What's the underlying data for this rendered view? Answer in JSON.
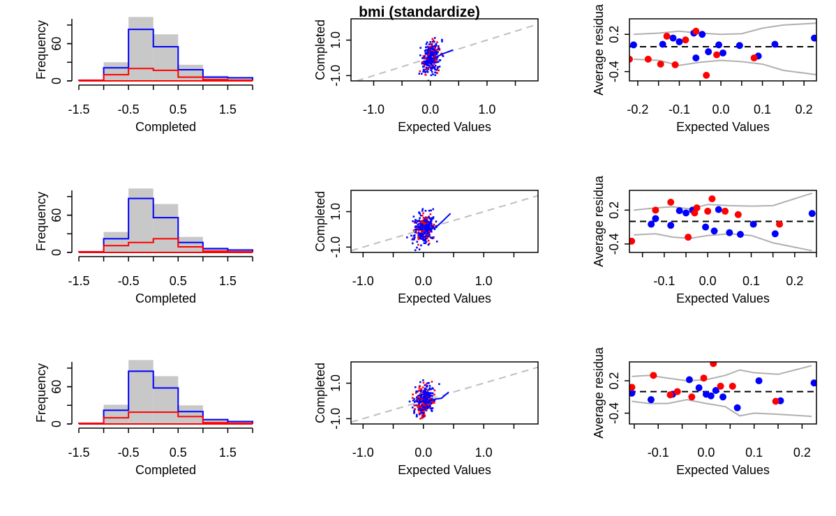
{
  "title": "bmi (standardize)",
  "colors": {
    "observed": "#0000ff",
    "imputed": "#ff0000",
    "total": "#c8c8c8",
    "ref": "#bebebe",
    "band": "#b0b0b0"
  },
  "chart_data": [
    {
      "type": "histogram",
      "row": 1,
      "xlabel": "Completed",
      "ylabel": "Frequency",
      "xlim": [
        -1.5,
        2.0
      ],
      "ylim": [
        0,
        100
      ],
      "xticks": [
        "-1.5",
        "-0.5",
        "0.5",
        "1.5"
      ],
      "xtick_values": [
        -1.5,
        -0.5,
        0.5,
        1.5
      ],
      "yticks": [
        "0",
        "60"
      ],
      "ytick_values": [
        0,
        60
      ],
      "bin_edges": [
        -1.5,
        -1.0,
        -0.5,
        0.0,
        0.5,
        1.0,
        1.5,
        2.0
      ],
      "series": [
        {
          "name": "total",
          "values": [
            1,
            30,
            103,
            75,
            26,
            8,
            6
          ]
        },
        {
          "name": "observed",
          "values": [
            1,
            21,
            83,
            55,
            18,
            6,
            5
          ]
        },
        {
          "name": "imputed",
          "values": [
            1,
            10,
            20,
            17,
            6,
            2,
            1
          ]
        }
      ]
    },
    {
      "type": "scatter",
      "row": 1,
      "xlabel": "Expected Values",
      "ylabel": "Completed",
      "xlim": [
        -1.4,
        1.9
      ],
      "ylim": [
        -1.3,
        2.2
      ],
      "xticks": [
        "-1.0",
        "0.0",
        "1.0"
      ],
      "xtick_values": [
        -1.0,
        0.0,
        1.0
      ],
      "yticks": [
        "-1.0",
        "1.0"
      ],
      "ytick_values": [
        -1.0,
        1.0
      ],
      "loess": [
        [
          -0.05,
          -0.3
        ],
        [
          0.05,
          -0.05
        ],
        [
          0.2,
          0.2
        ],
        [
          0.4,
          0.45
        ]
      ],
      "seed": 11
    },
    {
      "type": "scatter",
      "row": 1,
      "xlabel": "Expected Values",
      "ylabel": "Average residua",
      "xlim": [
        -0.22,
        0.23
      ],
      "ylim": [
        -0.55,
        0.45
      ],
      "xticks": [
        "-0.2",
        "-0.1",
        "0.0",
        "0.1",
        "0.2"
      ],
      "xtick_values": [
        -0.2,
        -0.1,
        0.0,
        0.1,
        0.2
      ],
      "yticks": [
        "-0.4",
        "0.2"
      ],
      "ytick_values": [
        -0.4,
        0.2
      ],
      "hline": 0,
      "band_upper": [
        [
          -0.21,
          0.2
        ],
        [
          -0.15,
          0.22
        ],
        [
          -0.1,
          0.25
        ],
        [
          -0.05,
          0.22
        ],
        [
          0.0,
          0.2
        ],
        [
          0.05,
          0.21
        ],
        [
          0.1,
          0.3
        ],
        [
          0.15,
          0.35
        ],
        [
          0.23,
          0.38
        ]
      ],
      "band_lower": [
        [
          -0.21,
          -0.2
        ],
        [
          -0.15,
          -0.22
        ],
        [
          -0.1,
          -0.3
        ],
        [
          -0.05,
          -0.25
        ],
        [
          0.0,
          -0.22
        ],
        [
          0.05,
          -0.24
        ],
        [
          0.1,
          -0.28
        ],
        [
          0.15,
          -0.38
        ],
        [
          0.23,
          -0.45
        ]
      ],
      "observed": [
        [
          -0.21,
          0.03
        ],
        [
          -0.14,
          0.04
        ],
        [
          -0.115,
          0.14
        ],
        [
          -0.1,
          0.08
        ],
        [
          -0.065,
          0.22
        ],
        [
          -0.06,
          -0.18
        ],
        [
          -0.045,
          0.2
        ],
        [
          -0.03,
          -0.08
        ],
        [
          -0.005,
          0.03
        ],
        [
          0.005,
          -0.1
        ],
        [
          0.045,
          0.02
        ],
        [
          0.09,
          -0.15
        ],
        [
          0.13,
          0.04
        ],
        [
          0.225,
          0.14
        ]
      ],
      "imputed": [
        [
          -0.22,
          -0.2
        ],
        [
          -0.175,
          -0.2
        ],
        [
          -0.145,
          -0.28
        ],
        [
          -0.13,
          0.17
        ],
        [
          -0.11,
          -0.29
        ],
        [
          -0.085,
          0.11
        ],
        [
          -0.06,
          0.25
        ],
        [
          -0.035,
          -0.46
        ],
        [
          -0.01,
          -0.13
        ],
        [
          0.08,
          -0.18
        ]
      ]
    },
    {
      "type": "histogram",
      "row": 2,
      "xlabel": "Completed",
      "ylabel": "Frequency",
      "xlim": [
        -1.5,
        2.0
      ],
      "ylim": [
        0,
        100
      ],
      "xticks": [
        "-1.5",
        "-0.5",
        "0.5",
        "1.5"
      ],
      "xtick_values": [
        -1.5,
        -0.5,
        0.5,
        1.5
      ],
      "yticks": [
        "0",
        "60"
      ],
      "ytick_values": [
        0,
        60
      ],
      "bin_edges": [
        -1.5,
        -1.0,
        -0.5,
        0.0,
        0.5,
        1.0,
        1.5,
        2.0
      ],
      "series": [
        {
          "name": "total",
          "values": [
            2,
            33,
            103,
            78,
            25,
            8,
            5
          ]
        },
        {
          "name": "observed",
          "values": [
            1,
            22,
            87,
            56,
            16,
            6,
            4
          ]
        },
        {
          "name": "imputed",
          "values": [
            1,
            11,
            16,
            22,
            9,
            2,
            1
          ]
        }
      ]
    },
    {
      "type": "scatter",
      "row": 2,
      "xlabel": "Expected Values",
      "ylabel": "Completed",
      "xlim": [
        -1.2,
        1.9
      ],
      "ylim": [
        -1.3,
        2.2
      ],
      "xticks": [
        "-1.0",
        "0.0",
        "1.0"
      ],
      "xtick_values": [
        -1.0,
        0.0,
        1.0
      ],
      "yticks": [
        "-1.0",
        "1.0"
      ],
      "ytick_values": [
        -1.0,
        1.0
      ],
      "loess": [
        [
          -0.15,
          0.0
        ],
        [
          0.05,
          0.0
        ],
        [
          0.2,
          0.1
        ],
        [
          0.3,
          0.4
        ],
        [
          0.45,
          0.9
        ]
      ],
      "seed": 23
    },
    {
      "type": "scatter",
      "row": 2,
      "xlabel": "Expected Values",
      "ylabel": "Average residua",
      "xlim": [
        -0.18,
        0.25
      ],
      "ylim": [
        -0.55,
        0.55
      ],
      "xticks": [
        "-0.1",
        "0.0",
        "0.1",
        "0.2"
      ],
      "xtick_values": [
        -0.1,
        0.0,
        0.1,
        0.2
      ],
      "yticks": [
        "-0.4",
        "0.2"
      ],
      "ytick_values": [
        -0.4,
        0.2
      ],
      "hline": 0,
      "band_upper": [
        [
          -0.17,
          0.2
        ],
        [
          -0.12,
          0.24
        ],
        [
          -0.08,
          0.26
        ],
        [
          -0.04,
          0.22
        ],
        [
          0.0,
          0.3
        ],
        [
          0.05,
          0.28
        ],
        [
          0.1,
          0.27
        ],
        [
          0.15,
          0.28
        ],
        [
          0.24,
          0.5
        ]
      ],
      "band_lower": [
        [
          -0.17,
          -0.24
        ],
        [
          -0.12,
          -0.22
        ],
        [
          -0.08,
          -0.28
        ],
        [
          -0.04,
          -0.3
        ],
        [
          0.0,
          -0.25
        ],
        [
          0.05,
          -0.22
        ],
        [
          0.1,
          -0.25
        ],
        [
          0.15,
          -0.38
        ],
        [
          0.24,
          -0.52
        ]
      ],
      "observed": [
        [
          -0.13,
          -0.05
        ],
        [
          -0.12,
          0.05
        ],
        [
          -0.085,
          -0.07
        ],
        [
          -0.065,
          0.19
        ],
        [
          -0.05,
          0.15
        ],
        [
          -0.035,
          0.2
        ],
        [
          -0.005,
          -0.1
        ],
        [
          0.015,
          -0.17
        ],
        [
          0.025,
          0.21
        ],
        [
          0.05,
          -0.2
        ],
        [
          0.075,
          -0.23
        ],
        [
          0.105,
          -0.05
        ],
        [
          0.155,
          -0.22
        ],
        [
          0.24,
          0.14
        ]
      ],
      "imputed": [
        [
          -0.175,
          -0.35
        ],
        [
          -0.12,
          0.2
        ],
        [
          -0.085,
          0.34
        ],
        [
          -0.045,
          -0.28
        ],
        [
          -0.025,
          0.24
        ],
        [
          -0.03,
          0.15
        ],
        [
          0.0,
          0.18
        ],
        [
          0.01,
          0.4
        ],
        [
          0.04,
          0.18
        ],
        [
          0.07,
          0.12
        ],
        [
          0.165,
          -0.05
        ]
      ]
    },
    {
      "type": "histogram",
      "row": 3,
      "xlabel": "Completed",
      "ylabel": "Frequency",
      "xlim": [
        -1.5,
        2.0
      ],
      "ylim": [
        0,
        100
      ],
      "xticks": [
        "-1.5",
        "-0.5",
        "0.5",
        "1.5"
      ],
      "xtick_values": [
        -1.5,
        -0.5,
        0.5,
        1.5
      ],
      "yticks": [
        "0",
        "60"
      ],
      "ytick_values": [
        0,
        60
      ],
      "bin_edges": [
        -1.5,
        -1.0,
        -0.5,
        0.0,
        0.5,
        1.0,
        1.5,
        2.0
      ],
      "series": [
        {
          "name": "total",
          "values": [
            2,
            31,
            103,
            77,
            30,
            8,
            5
          ]
        },
        {
          "name": "observed",
          "values": [
            1,
            22,
            85,
            58,
            20,
            7,
            4
          ]
        },
        {
          "name": "imputed",
          "values": [
            1,
            10,
            19,
            19,
            12,
            2,
            1
          ]
        }
      ]
    },
    {
      "type": "scatter",
      "row": 3,
      "xlabel": "Expected Values",
      "ylabel": "Completed",
      "xlim": [
        -1.2,
        1.9
      ],
      "ylim": [
        -1.3,
        2.2
      ],
      "xticks": [
        "-1.0",
        "0.0",
        "1.0"
      ],
      "xtick_values": [
        -1.0,
        0.0,
        1.0
      ],
      "yticks": [
        "-1.0",
        "1.0"
      ],
      "ytick_values": [
        -1.0,
        1.0
      ],
      "loess": [
        [
          -0.15,
          0.0
        ],
        [
          0.05,
          -0.05
        ],
        [
          0.2,
          0.1
        ],
        [
          0.3,
          0.15
        ],
        [
          0.42,
          0.5
        ]
      ],
      "seed": 37
    },
    {
      "type": "scatter",
      "row": 3,
      "xlabel": "Expected Values",
      "ylabel": "Average residua",
      "xlim": [
        -0.16,
        0.23
      ],
      "ylim": [
        -0.6,
        0.55
      ],
      "xticks": [
        "-0.1",
        "0.0",
        "0.1",
        "0.2"
      ],
      "xtick_values": [
        -0.1,
        0.0,
        0.1,
        0.2
      ],
      "yticks": [
        "-0.4",
        "0.2"
      ],
      "ytick_values": [
        -0.4,
        0.2
      ],
      "hline": 0,
      "band_upper": [
        [
          -0.155,
          0.28
        ],
        [
          -0.12,
          0.3
        ],
        [
          -0.08,
          0.25
        ],
        [
          -0.04,
          0.2
        ],
        [
          0.0,
          0.22
        ],
        [
          0.04,
          0.3
        ],
        [
          0.07,
          0.4
        ],
        [
          0.1,
          0.35
        ],
        [
          0.15,
          0.32
        ],
        [
          0.22,
          0.48
        ]
      ],
      "band_lower": [
        [
          -0.155,
          -0.18
        ],
        [
          -0.12,
          -0.22
        ],
        [
          -0.08,
          -0.22
        ],
        [
          -0.04,
          -0.15
        ],
        [
          0.0,
          -0.22
        ],
        [
          0.04,
          -0.28
        ],
        [
          0.07,
          -0.45
        ],
        [
          0.1,
          -0.4
        ],
        [
          0.15,
          -0.42
        ],
        [
          0.22,
          -0.46
        ]
      ],
      "observed": [
        [
          -0.155,
          -0.03
        ],
        [
          -0.115,
          -0.15
        ],
        [
          -0.07,
          -0.05
        ],
        [
          -0.035,
          0.22
        ],
        [
          -0.015,
          0.07
        ],
        [
          0.0,
          -0.05
        ],
        [
          0.01,
          -0.08
        ],
        [
          0.02,
          0.02
        ],
        [
          0.035,
          -0.1
        ],
        [
          0.065,
          -0.3
        ],
        [
          0.11,
          0.2
        ],
        [
          0.155,
          -0.17
        ],
        [
          0.225,
          0.16
        ]
      ],
      "imputed": [
        [
          -0.155,
          0.08
        ],
        [
          -0.11,
          0.3
        ],
        [
          -0.075,
          -0.06
        ],
        [
          -0.06,
          0.0
        ],
        [
          -0.03,
          -0.1
        ],
        [
          -0.005,
          0.25
        ],
        [
          0.015,
          0.52
        ],
        [
          0.03,
          0.1
        ],
        [
          0.055,
          0.1
        ],
        [
          0.145,
          -0.18
        ]
      ]
    }
  ]
}
